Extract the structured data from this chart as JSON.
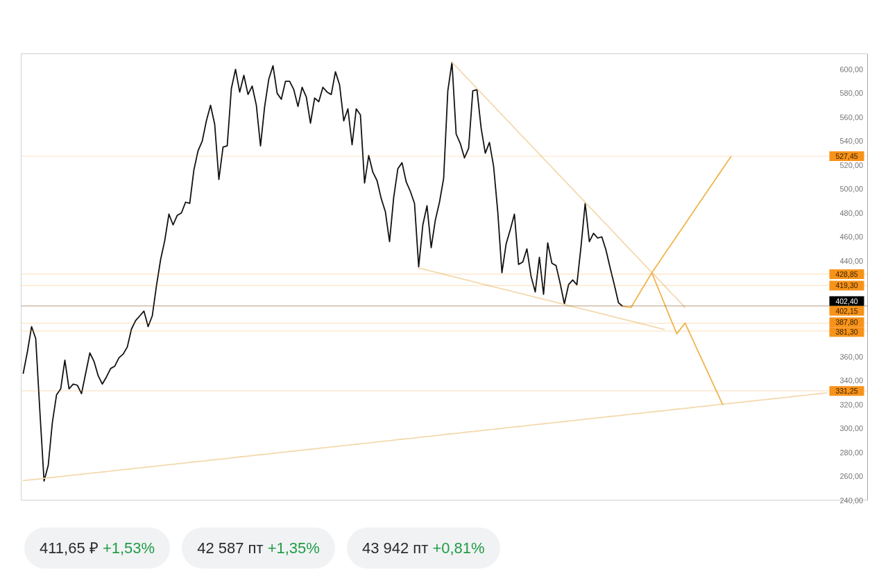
{
  "chart_data": {
    "type": "line",
    "ylim": [
      240,
      613
    ],
    "tick_labels": "y",
    "categories": [
      null,
      null,
      null,
      null,
      null,
      null,
      null,
      null,
      null,
      null,
      null,
      null,
      null,
      null,
      null,
      null,
      null,
      null,
      null,
      null,
      null,
      null,
      null,
      null,
      null,
      null,
      null,
      null,
      null,
      null,
      null,
      null,
      null,
      null,
      null,
      null,
      null,
      null,
      null,
      null,
      null,
      null,
      null,
      null,
      null,
      null,
      null,
      null,
      null,
      null,
      null,
      null,
      null,
      null,
      null,
      null,
      null,
      null,
      null,
      null,
      null,
      null,
      null,
      null,
      null,
      null,
      null,
      null,
      null,
      null,
      null,
      null,
      null,
      null,
      null,
      null,
      null,
      null,
      null,
      null,
      null,
      null,
      null,
      null,
      null,
      null,
      null,
      null,
      null,
      null,
      null,
      null,
      null,
      null,
      null,
      null,
      null,
      null,
      null,
      null,
      null,
      null,
      null,
      null,
      null,
      null,
      null,
      null,
      null,
      null,
      null,
      null,
      null,
      null,
      null,
      null,
      null,
      null,
      null,
      null,
      null,
      null,
      null,
      null,
      null,
      null,
      null,
      null,
      null,
      null,
      null,
      null,
      null,
      null,
      null,
      null,
      null,
      null,
      null,
      null,
      null,
      null,
      null,
      null,
      null,
      null,
      null,
      null,
      null,
      null,
      null,
      null,
      null,
      null,
      null,
      null,
      null,
      null,
      null,
      null,
      null,
      null,
      null,
      null,
      null,
      null,
      null,
      null,
      null,
      null,
      null,
      null,
      null,
      null,
      null,
      null,
      null,
      null,
      null,
      null,
      null,
      null,
      null,
      null,
      null,
      null,
      null,
      null,
      null,
      null,
      null,
      null,
      null,
      null
    ],
    "yticks": [
      {
        "value": 240,
        "label": "240,00"
      },
      {
        "value": 260,
        "label": "260,00"
      },
      {
        "value": 280,
        "label": "280,00"
      },
      {
        "value": 300,
        "label": "300,00"
      },
      {
        "value": 320,
        "label": "320,00"
      },
      {
        "value": 340,
        "label": "340,00"
      },
      {
        "value": 360,
        "label": "360,00"
      },
      {
        "value": 440,
        "label": "440,00"
      },
      {
        "value": 460,
        "label": "460,00"
      },
      {
        "value": 480,
        "label": "480,00"
      },
      {
        "value": 500,
        "label": "500,00"
      },
      {
        "value": 520,
        "label": "520,00"
      },
      {
        "value": 540,
        "label": "540,00"
      },
      {
        "value": 560,
        "label": "560,00"
      },
      {
        "value": 580,
        "label": "580,00"
      },
      {
        "value": 600,
        "label": "600,00"
      }
    ],
    "series": [
      {
        "color": "#111111",
        "values": [
          346,
          364,
          385,
          375,
          314,
          256,
          269,
          305,
          328,
          333,
          357,
          333,
          337,
          336,
          329,
          346,
          363,
          356,
          344,
          337,
          343,
          350,
          352,
          359,
          362,
          368,
          383,
          390,
          394,
          398,
          385,
          394,
          419,
          441,
          457,
          479,
          470,
          478,
          480,
          489,
          488,
          516,
          532,
          540,
          557,
          570,
          554,
          508,
          535,
          536,
          584,
          600,
          581,
          595,
          579,
          586,
          570,
          536,
          569,
          592,
          603,
          580,
          575,
          590,
          590,
          583,
          569,
          585,
          577,
          555,
          576,
          573,
          585,
          581,
          579,
          598,
          587,
          557,
          567,
          537,
          567,
          562,
          505,
          528,
          514,
          507,
          492,
          481,
          456,
          493,
          517,
          522,
          506,
          498,
          488,
          435,
          470,
          486,
          451,
          474,
          489,
          509,
          582,
          606,
          546,
          538,
          526,
          534,
          582,
          583,
          551,
          530,
          539,
          519,
          481,
          430,
          454,
          466,
          479,
          437,
          439,
          450,
          427,
          414,
          443,
          412,
          455,
          438,
          436,
          421,
          404,
          420,
          424,
          420,
          452,
          488,
          456,
          463,
          459,
          460,
          449,
          434,
          420,
          405,
          402,
          null,
          null,
          null,
          null,
          null,
          null,
          null,
          null,
          null,
          null,
          null,
          null,
          null,
          null,
          null,
          null,
          null,
          null,
          null,
          null,
          null,
          null,
          null,
          null,
          null,
          null,
          null,
          null,
          null,
          null,
          null,
          null,
          null,
          null,
          null,
          null,
          null,
          null,
          null,
          null,
          null,
          null,
          null,
          null,
          null,
          null,
          null,
          null,
          null
        ]
      },
      {
        "color": "#f3d9ad",
        "values": [
          null,
          null,
          null,
          null,
          null,
          null,
          null,
          null,
          null,
          null,
          null,
          null,
          null,
          null,
          null,
          null,
          null,
          null,
          null,
          null,
          null,
          null,
          null,
          null,
          null,
          null,
          null,
          null,
          null,
          null,
          null,
          null,
          null,
          null,
          null,
          null,
          null,
          null,
          null,
          null,
          null,
          null,
          null,
          null,
          null,
          null,
          null,
          null,
          null,
          null,
          null,
          null,
          null,
          null,
          null,
          null,
          null,
          null,
          null,
          null,
          null,
          null,
          null,
          null,
          null,
          null,
          null,
          null,
          null,
          null,
          null,
          null,
          null,
          null,
          null,
          null,
          null,
          null,
          null,
          null,
          null,
          null,
          null,
          null,
          null,
          null,
          null,
          null,
          null,
          null,
          null,
          null,
          null,
          null,
          null,
          null,
          null,
          null,
          null,
          null,
          null,
          null,
          null,
          606.0,
          602.3,
          598.7,
          595.0,
          591.4,
          587.7,
          584.0,
          580.4,
          576.7,
          573.1,
          569.4,
          565.7,
          562.1,
          558.4,
          554.8,
          551.1,
          547.4,
          543.8,
          540.1,
          536.5,
          532.8,
          529.1,
          525.5,
          521.8,
          518.2,
          514.5,
          510.8,
          507.2,
          503.5,
          499.9,
          496.2,
          492.5,
          488.9,
          485.2,
          481.6,
          477.9,
          474.2,
          470.6,
          466.9,
          463.3,
          459.6,
          455.9,
          452.3,
          448.6,
          445.0,
          441.3,
          437.6,
          434.0,
          430.3,
          426.7,
          423.0,
          419.3,
          415.7,
          412.0,
          408.4,
          404.7,
          401.0,
          null,
          null,
          null,
          null,
          null,
          null,
          null,
          null,
          null,
          null,
          null,
          null,
          null,
          null,
          null,
          null,
          null,
          null,
          null,
          null,
          null,
          null,
          null,
          null,
          null,
          null,
          null,
          null,
          null,
          null,
          null,
          null,
          null,
          null
        ]
      },
      {
        "color": "#f3d9ad",
        "values": [
          null,
          null,
          null,
          null,
          null,
          null,
          null,
          null,
          null,
          null,
          null,
          null,
          null,
          null,
          null,
          null,
          null,
          null,
          null,
          null,
          null,
          null,
          null,
          null,
          null,
          null,
          null,
          null,
          null,
          null,
          null,
          null,
          null,
          null,
          null,
          null,
          null,
          null,
          null,
          null,
          null,
          null,
          null,
          null,
          null,
          null,
          null,
          null,
          null,
          null,
          null,
          null,
          null,
          null,
          null,
          null,
          null,
          null,
          null,
          null,
          null,
          null,
          null,
          null,
          null,
          null,
          null,
          null,
          null,
          null,
          null,
          null,
          null,
          null,
          null,
          null,
          null,
          null,
          null,
          null,
          null,
          null,
          null,
          null,
          null,
          null,
          null,
          null,
          null,
          null,
          null,
          null,
          null,
          null,
          null,
          434.0,
          433.1,
          432.3,
          431.4,
          430.5,
          429.7,
          428.8,
          427.9,
          427.0,
          426.2,
          425.3,
          424.4,
          423.6,
          422.7,
          421.8,
          420.9,
          420.1,
          419.2,
          418.3,
          417.5,
          416.6,
          415.7,
          414.9,
          414.0,
          413.1,
          412.3,
          411.4,
          410.5,
          409.6,
          408.8,
          407.9,
          407.0,
          406.2,
          405.3,
          404.4,
          403.5,
          402.7,
          401.8,
          400.9,
          400.1,
          399.2,
          398.3,
          397.5,
          396.6,
          395.7,
          394.9,
          394.0,
          393.1,
          392.2,
          391.4,
          390.5,
          389.6,
          388.8,
          387.9,
          387.0,
          386.2,
          385.3,
          384.4,
          383.5,
          382.7,
          null,
          null,
          null,
          null,
          null,
          null,
          null,
          null,
          null,
          null,
          null,
          null,
          null,
          null,
          null,
          null,
          null,
          null,
          null,
          null,
          null,
          null,
          null,
          null,
          null,
          null,
          null,
          null,
          null,
          null,
          null,
          null,
          null,
          null,
          null,
          null,
          null,
          null,
          null
        ]
      },
      {
        "color": "#f3d9ad",
        "values": [
          256.3,
          256.7,
          257.1,
          257.4,
          257.8,
          258.2,
          258.6,
          259.0,
          259.3,
          259.7,
          260.1,
          260.5,
          260.9,
          261.2,
          261.6,
          262.0,
          262.4,
          262.8,
          263.1,
          263.5,
          263.9,
          264.3,
          264.7,
          265.0,
          265.4,
          265.8,
          266.2,
          266.6,
          266.9,
          267.3,
          267.7,
          268.1,
          268.5,
          268.8,
          269.2,
          269.6,
          270.0,
          270.4,
          270.7,
          271.1,
          271.5,
          271.9,
          272.3,
          272.6,
          273.0,
          273.4,
          273.8,
          274.2,
          274.5,
          274.9,
          275.3,
          275.7,
          276.1,
          276.4,
          276.8,
          277.2,
          277.6,
          278.0,
          278.3,
          278.7,
          279.1,
          279.5,
          279.9,
          280.2,
          280.6,
          281.0,
          281.4,
          281.8,
          282.1,
          282.5,
          282.9,
          283.3,
          283.7,
          284.0,
          284.4,
          284.8,
          285.2,
          285.6,
          285.9,
          286.3,
          286.7,
          287.1,
          287.5,
          287.8,
          288.2,
          288.6,
          289.0,
          289.4,
          289.7,
          290.1,
          290.5,
          290.9,
          291.3,
          291.6,
          292.0,
          292.4,
          292.8,
          293.2,
          293.5,
          293.9,
          294.3,
          294.7,
          295.1,
          295.4,
          295.8,
          296.2,
          296.6,
          297.0,
          297.3,
          297.7,
          298.1,
          298.5,
          298.9,
          299.2,
          299.6,
          300.0,
          300.4,
          300.8,
          301.1,
          301.5,
          301.9,
          302.3,
          302.7,
          303.0,
          303.4,
          303.8,
          304.2,
          304.6,
          304.9,
          305.3,
          305.7,
          306.1,
          306.5,
          306.8,
          307.2,
          307.6,
          308.0,
          308.4,
          308.7,
          309.1,
          309.5,
          309.9,
          310.3,
          310.6,
          311.0,
          311.4,
          311.8,
          312.2,
          312.5,
          312.9,
          313.3,
          313.7,
          314.1,
          314.4,
          314.8,
          315.2,
          315.6,
          316.0,
          316.3,
          316.7,
          317.1,
          317.5,
          317.9,
          318.2,
          318.6,
          319.0,
          319.4,
          319.8,
          320.1,
          320.5,
          320.9,
          321.3,
          321.7,
          322.0,
          322.4,
          322.8,
          323.2,
          323.6,
          323.9,
          324.3,
          324.7,
          325.1,
          325.5,
          325.8,
          326.2,
          326.6,
          327.0,
          327.4,
          327.7,
          328.1,
          328.5,
          328.9,
          329.3,
          329.6
        ]
      },
      {
        "color": "#f0b44c",
        "values": [
          null,
          null,
          null,
          null,
          null,
          null,
          null,
          null,
          null,
          null,
          null,
          null,
          null,
          null,
          null,
          null,
          null,
          null,
          null,
          null,
          null,
          null,
          null,
          null,
          null,
          null,
          null,
          null,
          null,
          null,
          null,
          null,
          null,
          null,
          null,
          null,
          null,
          null,
          null,
          null,
          null,
          null,
          null,
          null,
          null,
          null,
          null,
          null,
          null,
          null,
          null,
          null,
          null,
          null,
          null,
          null,
          null,
          null,
          null,
          null,
          null,
          null,
          null,
          null,
          null,
          null,
          null,
          null,
          null,
          null,
          null,
          null,
          null,
          null,
          null,
          null,
          null,
          null,
          null,
          null,
          null,
          null,
          null,
          null,
          null,
          null,
          null,
          null,
          null,
          null,
          null,
          null,
          null,
          null,
          null,
          null,
          null,
          null,
          null,
          null,
          null,
          null,
          null,
          null,
          null,
          null,
          null,
          null,
          null,
          null,
          null,
          null,
          null,
          null,
          null,
          null,
          null,
          null,
          null,
          null,
          null,
          null,
          null,
          null,
          null,
          null,
          null,
          null,
          null,
          null,
          null,
          null,
          null,
          null,
          null,
          null,
          null,
          null,
          null,
          null,
          null,
          null,
          null,
          null,
          402,
          401.5,
          401,
          406.8,
          412.6,
          418.4,
          424.2,
          430,
          435.1,
          440.2,
          445.3,
          450.4,
          455.5,
          460.6,
          465.7,
          470.8,
          475.9,
          481.1,
          486.2,
          491.3,
          496.4,
          501.5,
          506.6,
          511.7,
          516.8,
          521.9,
          527,
          null,
          null,
          null,
          null,
          null,
          null,
          null,
          null,
          null,
          null,
          null,
          null,
          null,
          null,
          null,
          null,
          null,
          null,
          null,
          null,
          null,
          null,
          null
        ]
      },
      {
        "color": "#f0b44c",
        "values": [
          null,
          null,
          null,
          null,
          null,
          null,
          null,
          null,
          null,
          null,
          null,
          null,
          null,
          null,
          null,
          null,
          null,
          null,
          null,
          null,
          null,
          null,
          null,
          null,
          null,
          null,
          null,
          null,
          null,
          null,
          null,
          null,
          null,
          null,
          null,
          null,
          null,
          null,
          null,
          null,
          null,
          null,
          null,
          null,
          null,
          null,
          null,
          null,
          null,
          null,
          null,
          null,
          null,
          null,
          null,
          null,
          null,
          null,
          null,
          null,
          null,
          null,
          null,
          null,
          null,
          null,
          null,
          null,
          null,
          null,
          null,
          null,
          null,
          null,
          null,
          null,
          null,
          null,
          null,
          null,
          null,
          null,
          null,
          null,
          null,
          null,
          null,
          null,
          null,
          null,
          null,
          null,
          null,
          null,
          null,
          null,
          null,
          null,
          null,
          null,
          null,
          null,
          null,
          null,
          null,
          null,
          null,
          null,
          null,
          null,
          null,
          null,
          null,
          null,
          null,
          null,
          null,
          null,
          null,
          null,
          null,
          null,
          null,
          null,
          null,
          null,
          null,
          null,
          null,
          null,
          null,
          null,
          null,
          null,
          null,
          null,
          null,
          null,
          null,
          null,
          null,
          null,
          null,
          null,
          null,
          null,
          null,
          null,
          null,
          null,
          null,
          430,
          421.5,
          413,
          404.5,
          396,
          387.5,
          379,
          383.5,
          388,
          380.4,
          372.9,
          365.3,
          357.8,
          350.2,
          342.7,
          335.1,
          327.6,
          320,
          null,
          null,
          null,
          null,
          null,
          null,
          null,
          null,
          null,
          null,
          null,
          null,
          null,
          null,
          null,
          null,
          null,
          null,
          null,
          null,
          null,
          null,
          null,
          null,
          null
        ]
      }
    ],
    "ref_lines": [
      {
        "axis": "y",
        "value": 527.45,
        "label": "527,45",
        "color": "#f7931a"
      },
      {
        "axis": "y",
        "value": 428.85,
        "label": "428,85",
        "color": "#f7931a"
      },
      {
        "axis": "y",
        "value": 419.3,
        "label": "419,30",
        "color": "#f7931a"
      },
      {
        "axis": "y",
        "value": 402.4,
        "label": "402,40",
        "color": "#000000"
      },
      {
        "axis": "y",
        "value": 402.15,
        "label": "402,15",
        "color": "#f7931a"
      },
      {
        "axis": "y",
        "value": 387.8,
        "label": "387,80",
        "color": "#f7931a"
      },
      {
        "axis": "y",
        "value": 381.3,
        "label": "381,30",
        "color": "#f7931a"
      },
      {
        "axis": "y",
        "value": 331.25,
        "label": "331,25",
        "color": "#f7931a"
      }
    ],
    "annotations": [
      "411,65 ₽ +1,53%",
      "42 587 пт +1,35%",
      "43 942 пт +0,81%"
    ]
  }
}
